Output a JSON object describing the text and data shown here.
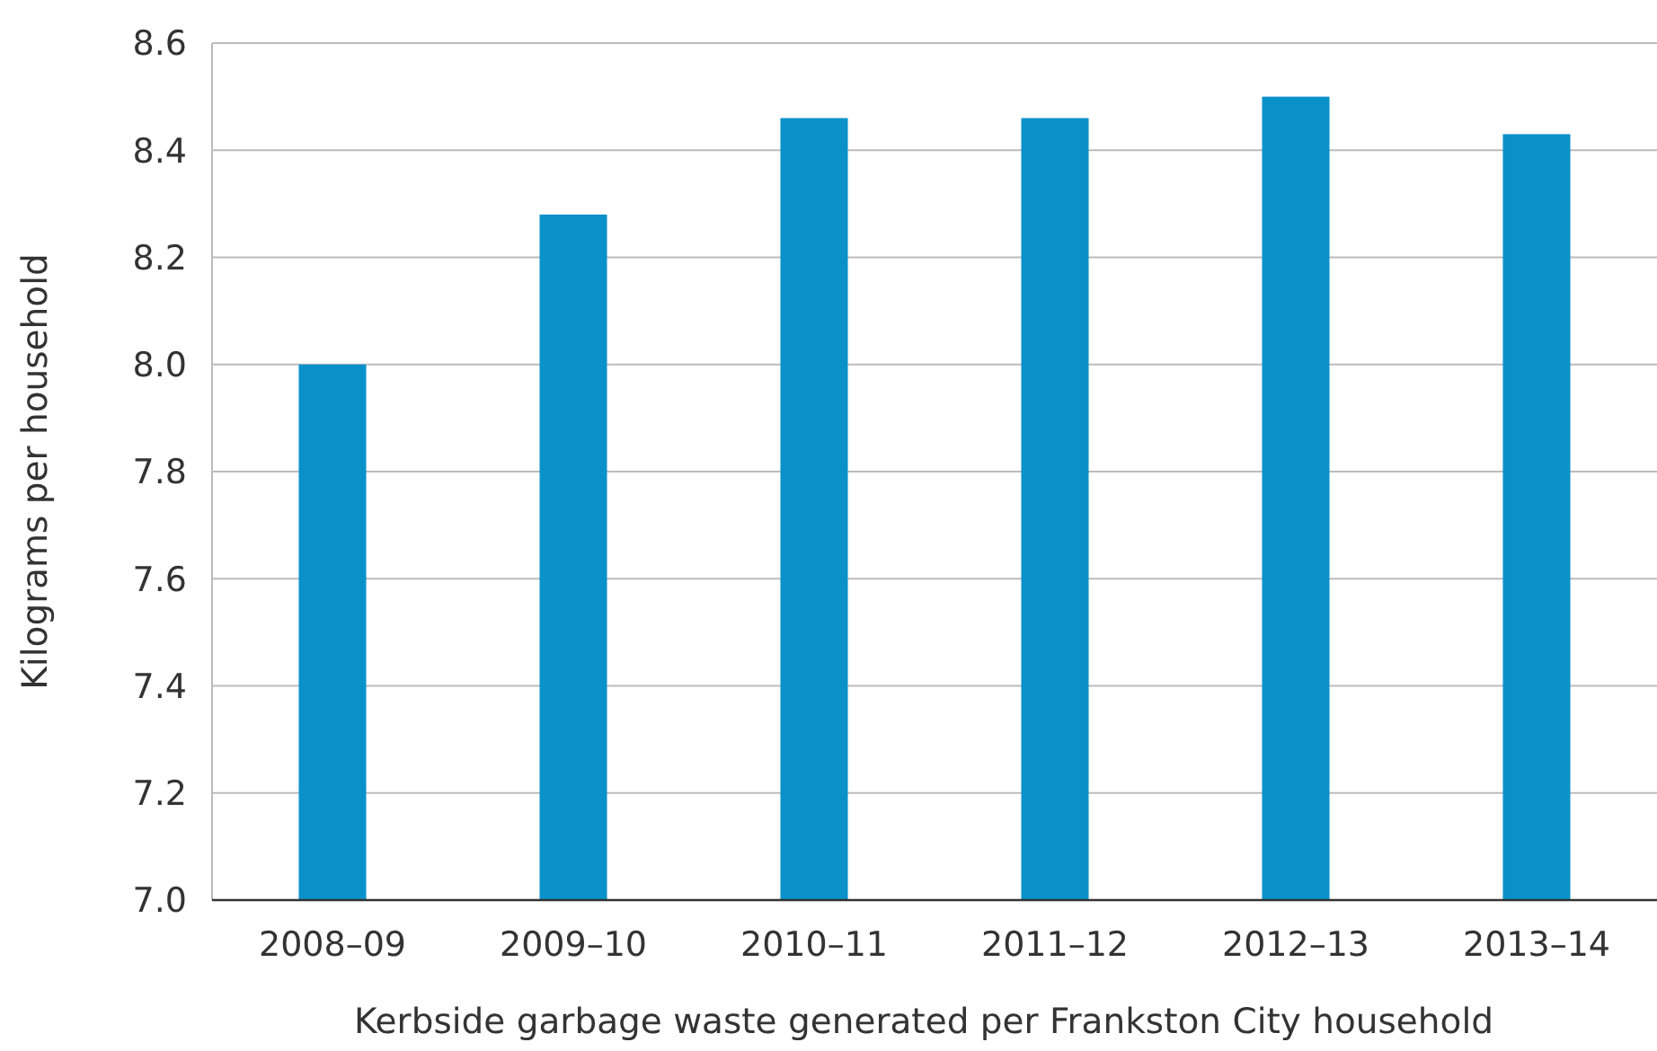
{
  "chart_data": {
    "type": "bar",
    "xlabel": "Kerbside garbage waste generated per Frankston City household",
    "ylabel": "Kilograms per household",
    "categories": [
      "2008–09",
      "2009–10",
      "2010–11",
      "2011–12",
      "2012–13",
      "2013–14"
    ],
    "values": [
      8.0,
      8.28,
      8.46,
      8.46,
      8.5,
      8.43
    ],
    "color": "#0a91c9",
    "ylim": [
      7.0,
      8.6
    ],
    "yticks": [
      {
        "value": 7.0,
        "label": "7.0"
      },
      {
        "value": 7.2,
        "label": "7.2"
      },
      {
        "value": 7.4,
        "label": "7.4"
      },
      {
        "value": 7.6,
        "label": "7.6"
      },
      {
        "value": 7.8,
        "label": "7.8"
      },
      {
        "value": 8.0,
        "label": "8.0"
      },
      {
        "value": 8.2,
        "label": "8.2"
      },
      {
        "value": 8.4,
        "label": "8.4"
      },
      {
        "value": 8.6,
        "label": "8.6"
      }
    ],
    "grid": "y"
  }
}
